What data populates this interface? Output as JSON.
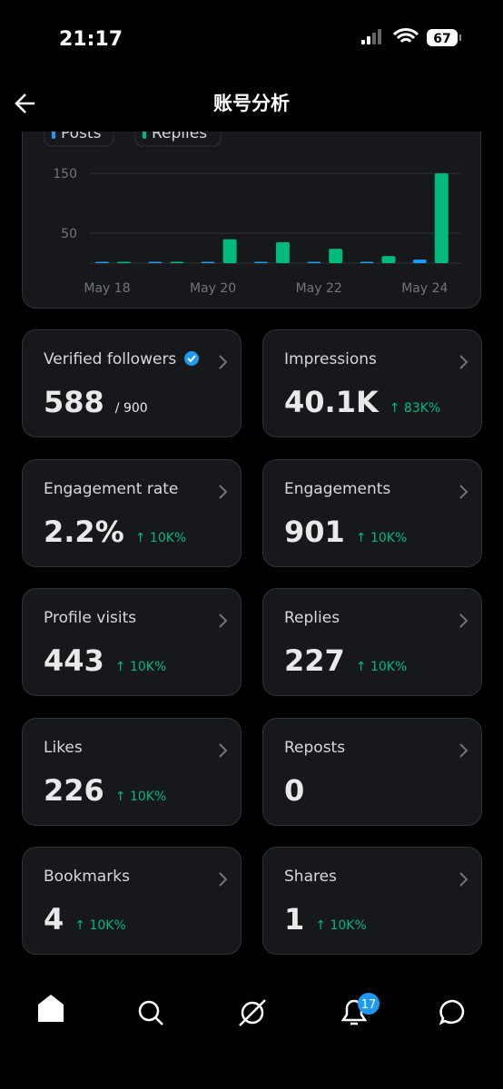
{
  "status_bar": {
    "time": "21:17",
    "battery": "67"
  },
  "header": {
    "title": "账号分析"
  },
  "chart_data": {
    "type": "bar",
    "categories": [
      "May 18",
      null,
      "May 20",
      null,
      "May 22",
      null,
      "May 24"
    ],
    "series": [
      {
        "name": "Posts",
        "color": "#1d9bf0",
        "values": [
          0,
          0,
          1,
          2,
          1,
          1,
          6
        ]
      },
      {
        "name": "Replies",
        "color": "#00ba7c",
        "values": [
          0,
          0,
          40,
          35,
          24,
          12,
          150
        ]
      }
    ],
    "ylim": [
      0,
      150
    ],
    "yticks": [
      50,
      150
    ],
    "grid": true
  },
  "cards": [
    {
      "label": "Verified followers",
      "value": "588",
      "sub": "/ 900",
      "verified": true
    },
    {
      "label": "Impressions",
      "value": "40.1K",
      "sub": "↑ 83K%"
    },
    {
      "label": "Engagement rate",
      "value": "2.2%",
      "sub": "↑ 10K%"
    },
    {
      "label": "Engagements",
      "value": "901",
      "sub": "↑ 10K%"
    },
    {
      "label": "Profile visits",
      "value": "443",
      "sub": "↑ 10K%"
    },
    {
      "label": "Replies",
      "value": "227",
      "sub": "↑ 10K%"
    },
    {
      "label": "Likes",
      "value": "226",
      "sub": "↑ 10K%"
    },
    {
      "label": "Reposts",
      "value": "0"
    },
    {
      "label": "Bookmarks",
      "value": "4",
      "sub": "↑ 10K%"
    },
    {
      "label": "Shares",
      "value": "1",
      "sub": "↑ 10K%"
    }
  ],
  "nav": {
    "badge": "17"
  }
}
